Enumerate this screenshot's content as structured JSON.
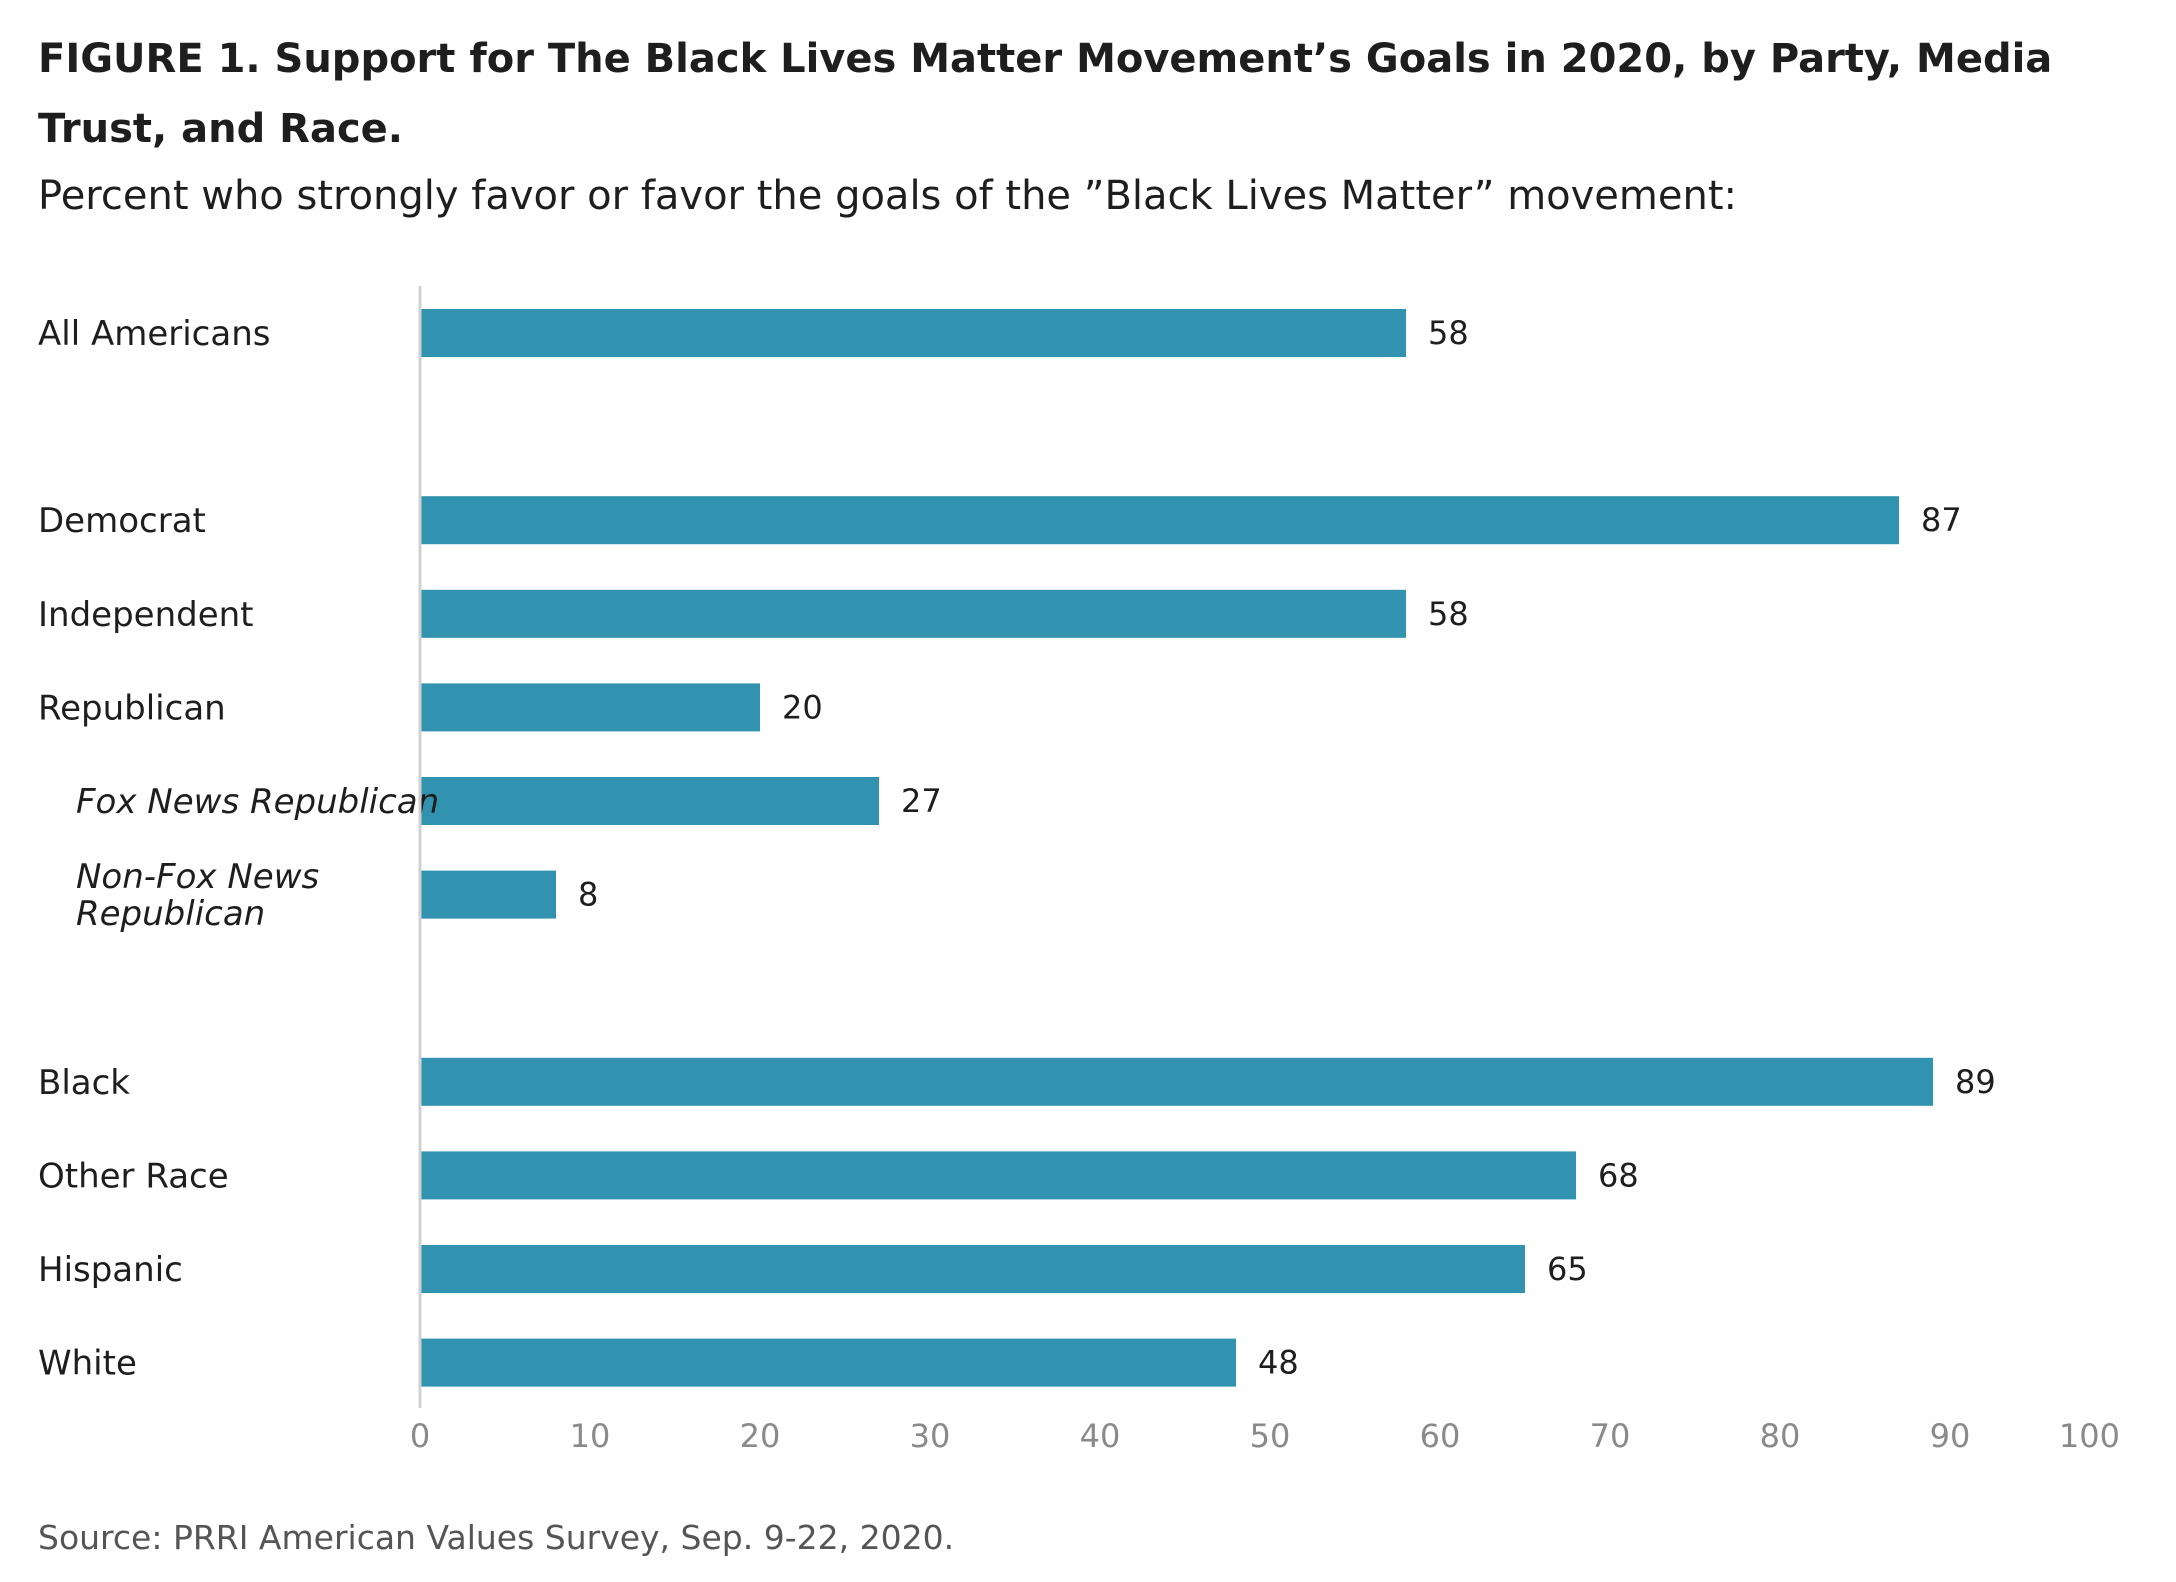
{
  "title": "FIGURE 1. Support for The Black Lives Matter Movement’s Goals in 2020, by Party, Media Trust, and Race.",
  "subtitle": "Percent who strongly favor or favor the goals of the ”Black Lives Matter” movement:",
  "source": "Source: PRRI American Values Survey, Sep. 9-22, 2020.",
  "colors": {
    "bar": "#3293b0",
    "axis": "#d0d0d0"
  },
  "chart_data": {
    "type": "bar",
    "orientation": "horizontal",
    "categories": [
      {
        "label": [
          "All Americans"
        ],
        "value": 58,
        "style": "normal",
        "slot": 0
      },
      {
        "label": [
          "Democrat"
        ],
        "value": 87,
        "style": "normal",
        "slot": 2
      },
      {
        "label": [
          "Independent"
        ],
        "value": 58,
        "style": "normal",
        "slot": 3
      },
      {
        "label": [
          "Republican"
        ],
        "value": 20,
        "style": "normal",
        "slot": 4
      },
      {
        "label": [
          "Fox News Republican"
        ],
        "value": 27,
        "style": "italic",
        "slot": 5
      },
      {
        "label": [
          "Non-Fox News",
          "Republican"
        ],
        "value": 8,
        "style": "italic",
        "slot": 6
      },
      {
        "label": [
          "Black"
        ],
        "value": 89,
        "style": "normal",
        "slot": 8
      },
      {
        "label": [
          "Other Race"
        ],
        "value": 68,
        "style": "normal",
        "slot": 9
      },
      {
        "label": [
          "Hispanic"
        ],
        "value": 65,
        "style": "normal",
        "slot": 10
      },
      {
        "label": [
          "White"
        ],
        "value": 48,
        "style": "normal",
        "slot": 11
      }
    ],
    "xlim": [
      0,
      100
    ],
    "xticks": [
      "0",
      "10",
      "20",
      "30",
      "40",
      "50",
      "60",
      "70",
      "80",
      "90",
      "100"
    ],
    "grid": false,
    "legend": "none"
  }
}
